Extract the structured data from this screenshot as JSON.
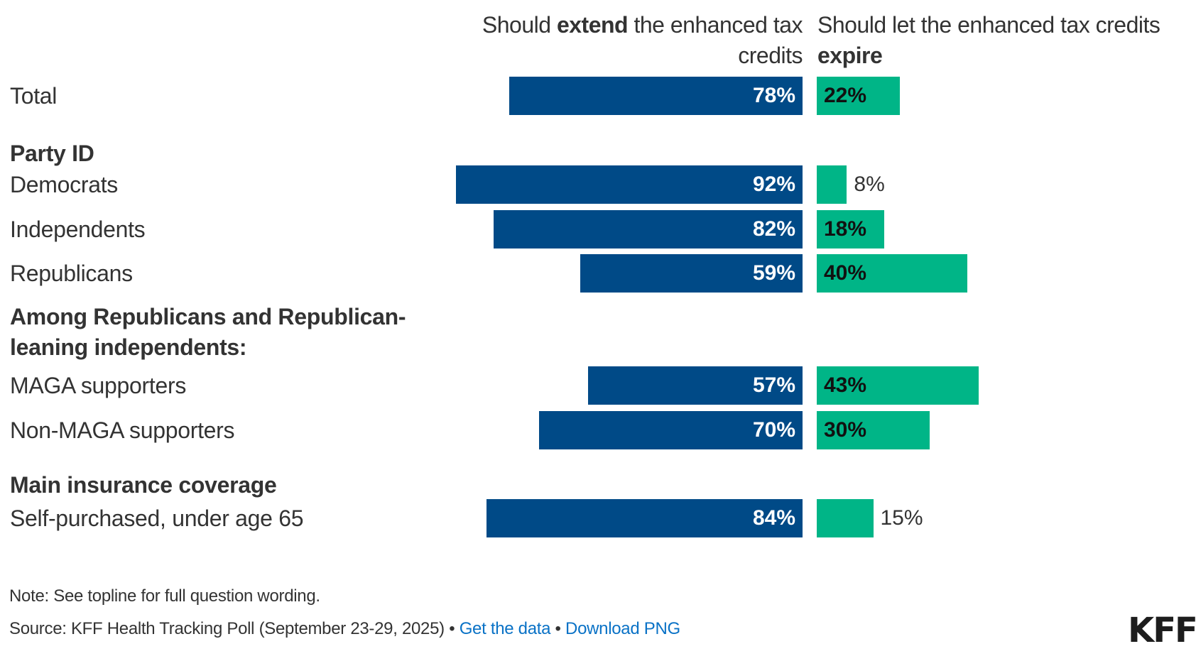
{
  "chart_data": {
    "type": "bar",
    "orientation": "horizontal-diverging",
    "title": "",
    "columns": [
      {
        "key": "extend",
        "header_pre": "Should ",
        "header_bold": "extend",
        "header_post": " the enhanced tax credits",
        "color": "#004a87"
      },
      {
        "key": "expire",
        "header_pre": "Should let the enhanced tax credits ",
        "header_bold": "expire",
        "header_post": "",
        "color": "#00b587"
      }
    ],
    "rows": [
      {
        "type": "category",
        "label": "Total",
        "extend": 78,
        "expire": 22
      },
      {
        "type": "group",
        "label": "Party ID"
      },
      {
        "type": "category",
        "label": "Democrats",
        "extend": 92,
        "expire": 8
      },
      {
        "type": "category",
        "label": "Independents",
        "extend": 82,
        "expire": 18
      },
      {
        "type": "category",
        "label": "Republicans",
        "extend": 59,
        "expire": 40
      },
      {
        "type": "group",
        "label": "Among Republicans and Republican-leaning independents:"
      },
      {
        "type": "category",
        "label": "MAGA supporters",
        "extend": 57,
        "expire": 43
      },
      {
        "type": "category",
        "label": "Non-MAGA supporters",
        "extend": 70,
        "expire": 30
      },
      {
        "type": "group",
        "label": "Main insurance coverage"
      },
      {
        "type": "category",
        "label": "Self-purchased, under age 65",
        "extend": 84,
        "expire": 15
      }
    ],
    "unit": "%",
    "xlim": [
      0,
      100
    ],
    "grid": false,
    "legend": "column-headers-top"
  },
  "footer": {
    "note": "Note: See topline for full question wording.",
    "source": "Source: KFF Health Tracking Poll (September 23-29, 2025)",
    "separator": " • ",
    "link_get_data": "Get the data",
    "link_download": "Download PNG"
  },
  "logo": {
    "text": "KFF"
  }
}
